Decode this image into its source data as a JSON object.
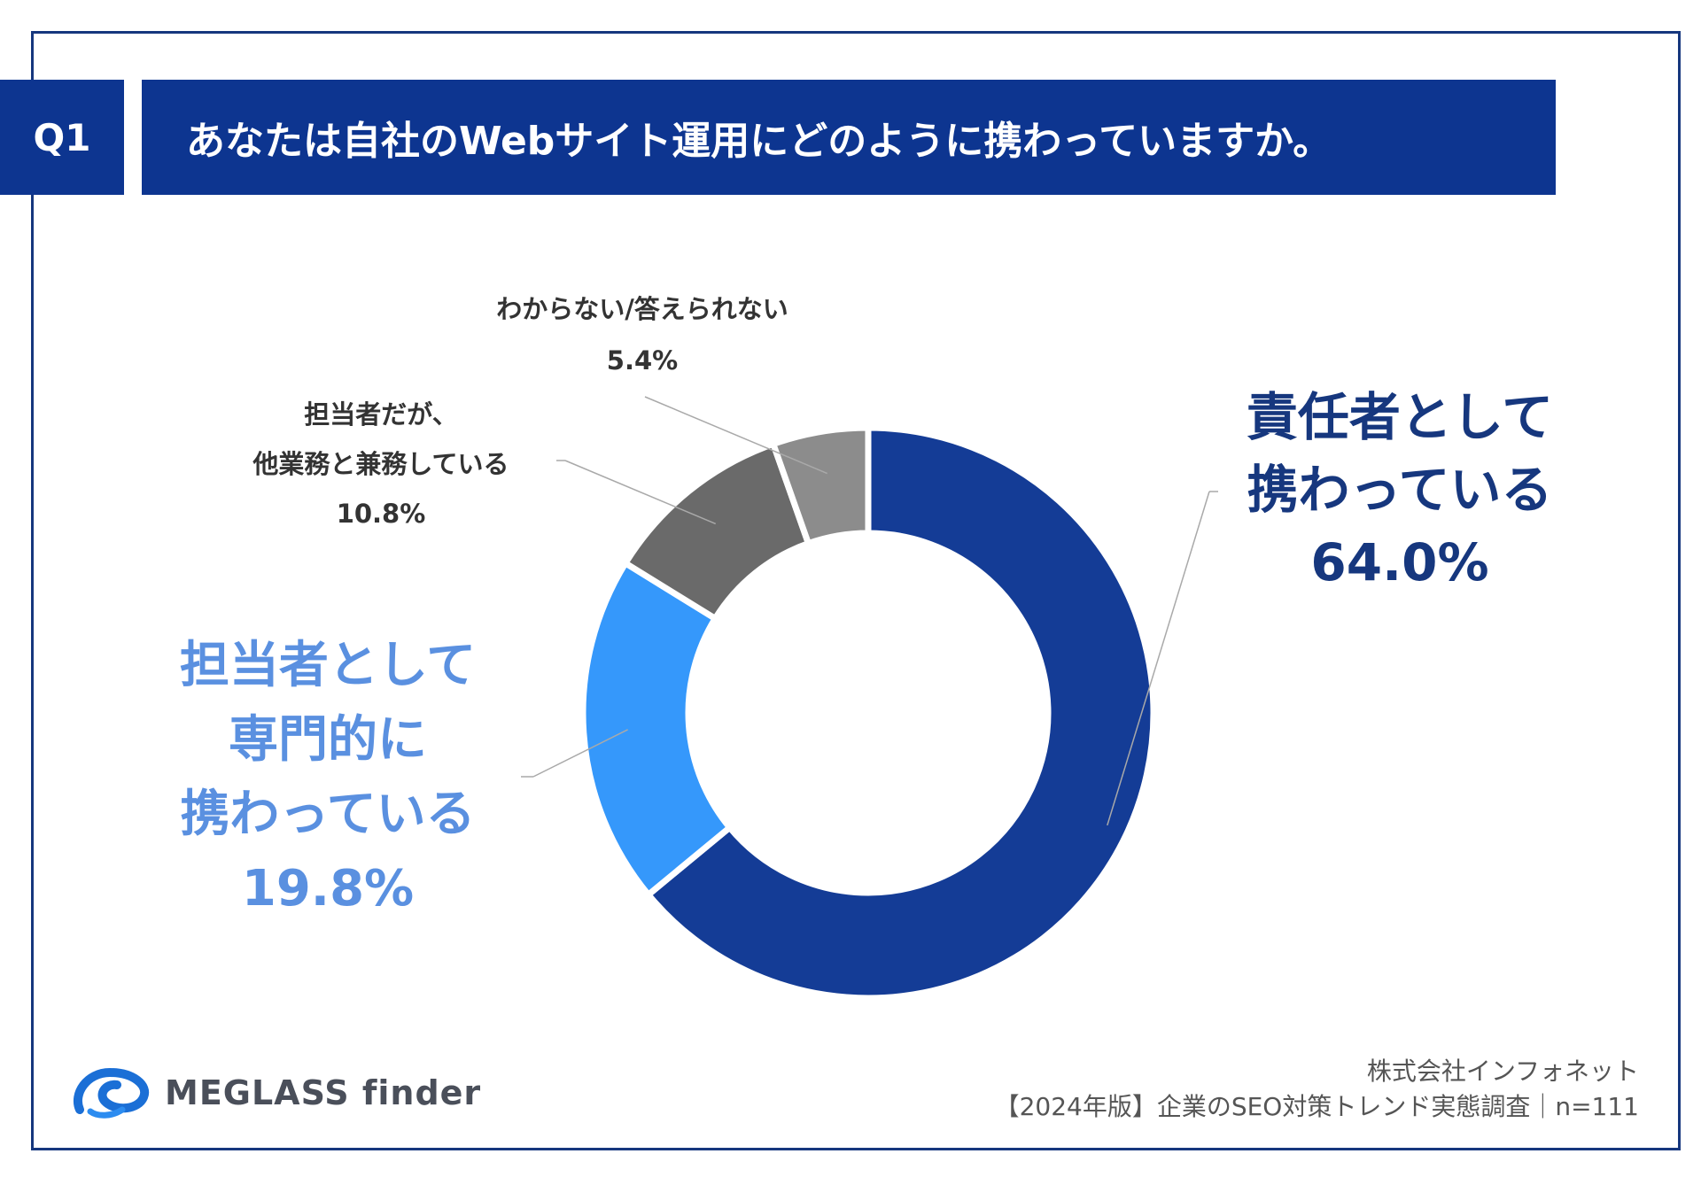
{
  "header": {
    "badge": "Q1",
    "question": "あなたは自社のWebサイト運用にどのように携わっていますか。"
  },
  "chart_data": {
    "type": "pie",
    "variant": "donut",
    "title": "あなたは自社のWebサイト運用にどのように携わっていますか。",
    "slices": [
      {
        "id": "mgr",
        "label_lines": [
          "責任者として",
          "携わっている"
        ],
        "value": 64.0,
        "value_label": "64.0%",
        "color": "#143c96"
      },
      {
        "id": "dedi",
        "label_lines": [
          "担当者として",
          "専門的に",
          "携わっている"
        ],
        "value": 19.8,
        "value_label": "19.8%",
        "color": "#3598fb"
      },
      {
        "id": "other",
        "label_lines": [
          "担当者だが、",
          "他業務と兼務している"
        ],
        "value": 10.8,
        "value_label": "10.8%",
        "color": "#6a6a6a"
      },
      {
        "id": "dk",
        "label_lines": [
          "わからない/答えられない"
        ],
        "value": 5.4,
        "value_label": "5.4%",
        "color": "#8c8c8c"
      }
    ]
  },
  "footer": {
    "brand": "MEGLASS finder",
    "company": "株式会社インフォネット",
    "source": "【2024年版】企業のSEO対策トレンド実態調査｜n=111"
  },
  "colors": {
    "accent": "#0d3590",
    "frame": "#16377e"
  }
}
